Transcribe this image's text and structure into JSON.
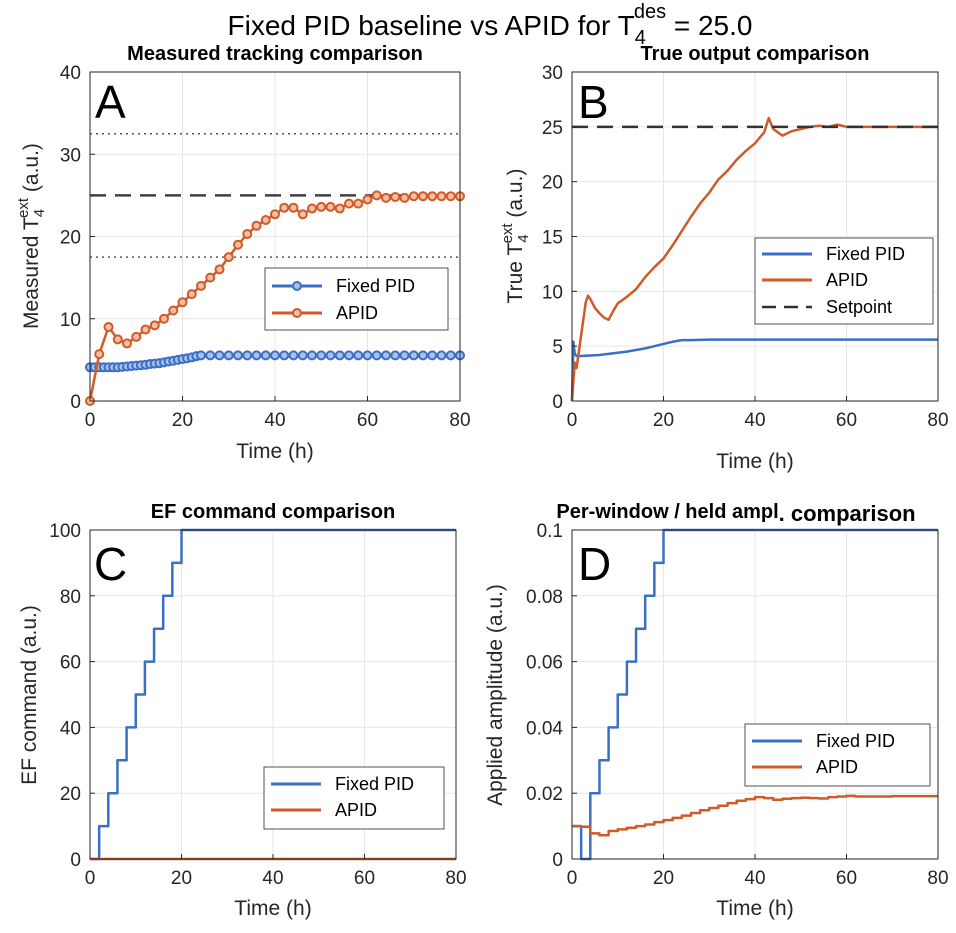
{
  "figure": {
    "title_main": "Fixed PID baseline vs APID for T",
    "title_sub": "4",
    "title_sup": "des",
    "title_tail": " = 25.0"
  },
  "chart_data": [
    {
      "id": "A",
      "letter": "A",
      "type": "line",
      "title": "Measured tracking comparison",
      "xlabel": "Time (h)",
      "ylabel_main": "Measured T",
      "ylabel_sub": "4",
      "ylabel_sup": "ext",
      "ylabel_tail": " (a.u.)",
      "xlim": [
        0,
        80
      ],
      "ylim": [
        0,
        40
      ],
      "xticks": [
        0,
        20,
        40,
        60,
        80
      ],
      "yticks": [
        0,
        10,
        20,
        30,
        40
      ],
      "legend_position": "center-right",
      "reference_lines": [
        {
          "y": 25,
          "style": "dashed"
        },
        {
          "y": 32.5,
          "style": "dotted"
        },
        {
          "y": 17.5,
          "style": "dotted"
        }
      ],
      "series": [
        {
          "name": "Fixed PID",
          "color": "#3a6fc4",
          "marker": "circle",
          "x": [
            0,
            1,
            2,
            3,
            4,
            5,
            6,
            7,
            8,
            9,
            10,
            11,
            12,
            13,
            14,
            15,
            16,
            17,
            18,
            19,
            20,
            21,
            22,
            23,
            24,
            26,
            28,
            30,
            32,
            34,
            36,
            38,
            40,
            42,
            44,
            46,
            48,
            50,
            52,
            54,
            56,
            58,
            60,
            62,
            64,
            66,
            68,
            70,
            72,
            74,
            76,
            78,
            80
          ],
          "y": [
            4.1,
            4.1,
            4.1,
            4.1,
            4.1,
            4.1,
            4.1,
            4.15,
            4.2,
            4.25,
            4.3,
            4.35,
            4.4,
            4.5,
            4.55,
            4.6,
            4.7,
            4.8,
            4.9,
            5.0,
            5.1,
            5.2,
            5.3,
            5.45,
            5.55,
            5.55,
            5.55,
            5.55,
            5.55,
            5.55,
            5.55,
            5.55,
            5.55,
            5.55,
            5.55,
            5.55,
            5.55,
            5.55,
            5.55,
            5.55,
            5.55,
            5.55,
            5.55,
            5.55,
            5.55,
            5.55,
            5.55,
            5.55,
            5.55,
            5.55,
            5.55,
            5.55,
            5.55
          ]
        },
        {
          "name": "APID",
          "color": "#d05a28",
          "marker": "circle",
          "x": [
            0,
            2,
            4,
            6,
            8,
            10,
            12,
            14,
            16,
            18,
            20,
            22,
            24,
            26,
            28,
            30,
            32,
            34,
            36,
            38,
            40,
            42,
            44,
            46,
            48,
            50,
            52,
            54,
            56,
            58,
            60,
            62,
            64,
            66,
            68,
            70,
            72,
            74,
            76,
            78,
            80
          ],
          "y": [
            0,
            5.7,
            9.0,
            7.5,
            7.0,
            7.8,
            8.7,
            9.2,
            10.0,
            11.0,
            12.0,
            13.0,
            14.0,
            15.0,
            16.0,
            17.5,
            19.0,
            20.3,
            21.3,
            22.0,
            22.7,
            23.5,
            23.5,
            22.7,
            23.4,
            23.6,
            23.6,
            23.4,
            24.0,
            24.0,
            24.5,
            25.0,
            24.7,
            24.8,
            24.7,
            24.9,
            24.9,
            24.9,
            24.9,
            24.9,
            24.9
          ]
        }
      ]
    },
    {
      "id": "B",
      "letter": "B",
      "type": "line",
      "title": "True output comparison",
      "xlabel": "Time (h)",
      "ylabel_main": "True T",
      "ylabel_sub": "4",
      "ylabel_sup": "ext",
      "ylabel_tail": " (a.u.)",
      "xlim": [
        0,
        80
      ],
      "ylim": [
        0,
        30
      ],
      "xticks": [
        0,
        20,
        40,
        60,
        80
      ],
      "yticks": [
        0,
        5,
        10,
        15,
        20,
        25,
        30
      ],
      "legend_position": "center-right",
      "reference_lines": [
        {
          "y": 25,
          "style": "dashed"
        }
      ],
      "series": [
        {
          "name": "Fixed PID",
          "color": "#3a6fc4",
          "x": [
            0,
            0.3,
            0.6,
            1,
            2,
            4,
            6,
            8,
            10,
            12,
            14,
            16,
            18,
            20,
            22,
            24,
            26,
            30,
            40,
            50,
            60,
            70,
            80
          ],
          "y": [
            0,
            5.4,
            4.3,
            4.1,
            4.1,
            4.15,
            4.2,
            4.3,
            4.4,
            4.5,
            4.65,
            4.8,
            5.0,
            5.2,
            5.4,
            5.55,
            5.55,
            5.6,
            5.6,
            5.6,
            5.6,
            5.6,
            5.6
          ]
        },
        {
          "name": "APID",
          "color": "#d05a28",
          "x": [
            0,
            0.6,
            1,
            2,
            3,
            3.5,
            4,
            5,
            6,
            7,
            8,
            9,
            10,
            12,
            14,
            16,
            18,
            20,
            22,
            24,
            26,
            28,
            30,
            32,
            34,
            36,
            38,
            40,
            42,
            43,
            44,
            46,
            48,
            50,
            52,
            54,
            56,
            58,
            60,
            62,
            64,
            66,
            68,
            70,
            72,
            74,
            76,
            78,
            80
          ],
          "y": [
            0,
            3.5,
            3.0,
            6.0,
            9.0,
            9.6,
            9.3,
            8.5,
            8.0,
            7.6,
            7.4,
            8.2,
            8.9,
            9.5,
            10.2,
            11.3,
            12.2,
            13.0,
            14.2,
            15.5,
            16.8,
            18.0,
            19.0,
            20.2,
            21.0,
            22.0,
            22.8,
            23.5,
            24.5,
            25.8,
            24.8,
            24.2,
            24.6,
            24.8,
            25.0,
            25.1,
            25.0,
            25.2,
            25.0,
            25.0,
            25.0,
            25.0,
            25.0,
            25.0,
            25.0,
            25.0,
            25.0,
            25.0,
            25.0
          ]
        },
        {
          "name": "Setpoint",
          "color": "#333333",
          "dashed": true,
          "x": [
            0,
            80
          ],
          "y": [
            25,
            25
          ]
        }
      ]
    },
    {
      "id": "C",
      "letter": "C",
      "type": "line",
      "title": "EF command comparison",
      "xlabel": "Time (h)",
      "ylabel": "EF command (a.u.)",
      "xlim": [
        0,
        80
      ],
      "ylim": [
        0,
        100
      ],
      "xticks": [
        0,
        20,
        40,
        60,
        80
      ],
      "yticks": [
        0,
        20,
        40,
        60,
        80,
        100
      ],
      "legend_position": "bottom-right",
      "series": [
        {
          "name": "Fixed PID",
          "color": "#3a6fc4",
          "step": true,
          "x": [
            0,
            2,
            4,
            6,
            8,
            10,
            12,
            14,
            16,
            18,
            20,
            80
          ],
          "y": [
            0,
            10,
            20,
            30,
            40,
            50,
            60,
            70,
            80,
            90,
            100,
            100
          ]
        },
        {
          "name": "APID",
          "color": "#d05a28",
          "x": [
            0,
            80
          ],
          "y": [
            0,
            0
          ]
        }
      ]
    },
    {
      "id": "D",
      "letter": "D",
      "type": "line",
      "title_left": "Per-window / held ampl",
      "title_right": ". comparison",
      "xlabel": "Time (h)",
      "ylabel": "Applied amplitude (a.u.)",
      "xlim": [
        0,
        80
      ],
      "ylim": [
        0,
        0.1
      ],
      "xticks": [
        0,
        20,
        40,
        60,
        80
      ],
      "yticks": [
        0,
        0.02,
        0.04,
        0.06,
        0.08,
        0.1
      ],
      "ytick_labels": [
        "0",
        "0.02",
        "0.04",
        "0.06",
        "0.08",
        "0.1"
      ],
      "legend_position": "center-right",
      "series": [
        {
          "name": "Fixed PID",
          "color": "#3a6fc4",
          "step": true,
          "x": [
            0,
            2,
            4,
            6,
            8,
            10,
            12,
            14,
            16,
            18,
            20,
            80
          ],
          "y": [
            0.01,
            0,
            0.02,
            0.03,
            0.04,
            0.05,
            0.06,
            0.07,
            0.08,
            0.09,
            0.1,
            0.1
          ]
        },
        {
          "name": "APID",
          "color": "#d05a28",
          "step": true,
          "x": [
            0,
            2,
            4,
            6,
            8,
            10,
            12,
            14,
            16,
            18,
            20,
            22,
            24,
            26,
            28,
            30,
            32,
            34,
            36,
            38,
            40,
            42,
            44,
            46,
            48,
            50,
            52,
            54,
            56,
            58,
            60,
            62,
            64,
            66,
            68,
            70,
            72,
            74,
            76,
            78,
            80
          ],
          "y": [
            0.01,
            0.0098,
            0.0078,
            0.0072,
            0.0085,
            0.009,
            0.0095,
            0.01,
            0.0105,
            0.0112,
            0.0118,
            0.0125,
            0.0132,
            0.014,
            0.0148,
            0.0155,
            0.0162,
            0.017,
            0.0177,
            0.0182,
            0.0188,
            0.0185,
            0.018,
            0.0183,
            0.0185,
            0.0186,
            0.0185,
            0.0184,
            0.0188,
            0.019,
            0.0192,
            0.019,
            0.019,
            0.019,
            0.019,
            0.0191,
            0.0191,
            0.0191,
            0.0191,
            0.0191,
            0.0191
          ]
        }
      ]
    }
  ]
}
